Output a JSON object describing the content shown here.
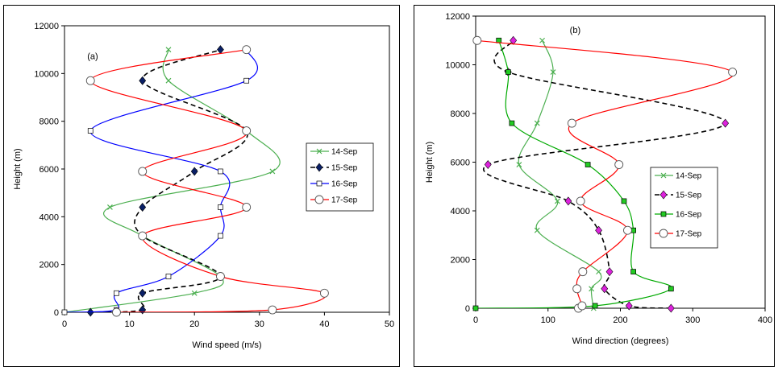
{
  "chart_data": [
    {
      "type": "line",
      "panel_label": "(a)",
      "xlabel": "Wind speed (m/s)",
      "ylabel": "Height (m)",
      "xlim": [
        0,
        50
      ],
      "ylim": [
        0,
        12000
      ],
      "xticks": [
        0,
        10,
        20,
        30,
        40,
        50
      ],
      "yticks": [
        0,
        2000,
        4000,
        6000,
        8000,
        10000,
        12000
      ],
      "legend_position": "right",
      "series": [
        {
          "name": "14-Sep",
          "color": "#4caf50",
          "dash": "",
          "marker": "x",
          "x": [
            0,
            20,
            24,
            12,
            7,
            32,
            28,
            16,
            16
          ],
          "y": [
            0,
            800,
            1500,
            3200,
            4400,
            5900,
            7600,
            9700,
            11000
          ]
        },
        {
          "name": "15-Sep",
          "color": "#000000",
          "dash": "6,4",
          "marker": "diamond",
          "x": [
            4,
            12,
            12,
            24,
            12,
            12,
            20,
            28,
            12,
            24
          ],
          "y": [
            0,
            100,
            800,
            1500,
            3200,
            4400,
            5900,
            7600,
            9700,
            11000
          ]
        },
        {
          "name": "16-Sep",
          "color": "#0000ff",
          "dash": "",
          "marker": "square",
          "x": [
            0,
            8,
            8,
            16,
            24,
            24,
            24,
            4,
            28,
            28
          ],
          "y": [
            0,
            100,
            800,
            1500,
            3200,
            4400,
            5900,
            7600,
            9700,
            11000
          ]
        },
        {
          "name": "17-Sep",
          "color": "#ff0000",
          "dash": "",
          "marker": "circle",
          "x": [
            8,
            32,
            40,
            24,
            12,
            28,
            12,
            28,
            4,
            28
          ],
          "y": [
            0,
            100,
            800,
            1500,
            3200,
            4400,
            5900,
            7600,
            9700,
            11000
          ]
        }
      ]
    },
    {
      "type": "line",
      "panel_label": "(b)",
      "xlabel": "Wind direction (degrees)",
      "ylabel": "Height (m)",
      "xlim": [
        0,
        400
      ],
      "ylim": [
        0,
        12000
      ],
      "xticks": [
        0,
        100,
        200,
        300,
        400
      ],
      "yticks": [
        0,
        2000,
        4000,
        6000,
        8000,
        10000,
        12000
      ],
      "legend_position": "right",
      "series": [
        {
          "name": "14-Sep",
          "color": "#4caf50",
          "dash": "",
          "marker": "x",
          "x": [
            163,
            160,
            170,
            85,
            113,
            60,
            85,
            107,
            92
          ],
          "y": [
            0,
            800,
            1500,
            3200,
            4400,
            5900,
            7600,
            9700,
            11000
          ]
        },
        {
          "name": "15-Sep",
          "color": "#000000",
          "dash": "6,4",
          "marker": "diamond",
          "x": [
            270,
            212,
            178,
            185,
            170,
            128,
            17,
            345,
            45,
            52
          ],
          "y": [
            0,
            100,
            800,
            1500,
            3200,
            4400,
            5900,
            7600,
            9700,
            11000
          ]
        },
        {
          "name": "16-Sep",
          "color": "#00aa00",
          "dash": "",
          "marker": "square",
          "x": [
            0,
            165,
            270,
            218,
            218,
            205,
            155,
            50,
            45,
            32
          ],
          "y": [
            0,
            100,
            800,
            1500,
            3200,
            4400,
            5900,
            7600,
            9700,
            11000
          ]
        },
        {
          "name": "17-Sep",
          "color": "#ff0000",
          "dash": "",
          "marker": "circle",
          "x": [
            142,
            147,
            140,
            148,
            210,
            145,
            198,
            133,
            355,
            2
          ],
          "y": [
            0,
            100,
            800,
            1500,
            3200,
            4400,
            5900,
            7600,
            9700,
            11000
          ]
        }
      ]
    }
  ]
}
